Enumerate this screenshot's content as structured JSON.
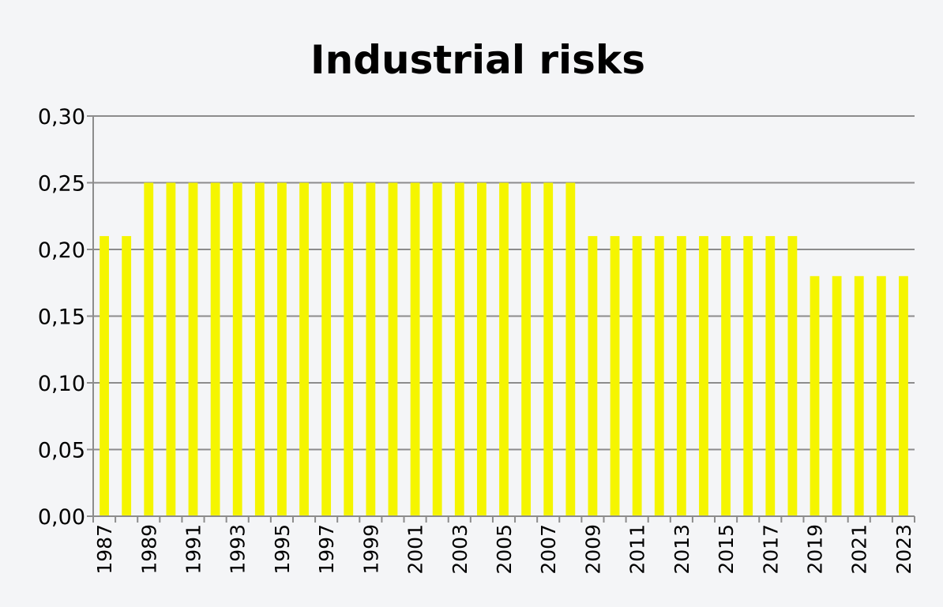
{
  "chart_data": {
    "type": "bar",
    "title": "Industrial risks",
    "xlabel": "",
    "ylabel": "",
    "ylim": [
      0,
      0.3
    ],
    "yticks": [
      "0,00",
      "0,05",
      "0,10",
      "0,15",
      "0,20",
      "0,25",
      "0,30"
    ],
    "grid": true,
    "bar_color": "#f5f500",
    "categories": [
      "1987",
      "1988",
      "1989",
      "1990",
      "1991",
      "1992",
      "1993",
      "1994",
      "1995",
      "1996",
      "1997",
      "1998",
      "1999",
      "2000",
      "2001",
      "2002",
      "2003",
      "2004",
      "2005",
      "2006",
      "2007",
      "2008",
      "2009",
      "2010",
      "2011",
      "2012",
      "2013",
      "2014",
      "2015",
      "2016",
      "2017",
      "2018",
      "2019",
      "2020",
      "2021",
      "2022",
      "2023"
    ],
    "xtick_labels_shown": [
      "1987",
      "1989",
      "1991",
      "1993",
      "1995",
      "1997",
      "1999",
      "2001",
      "2003",
      "2005",
      "2007",
      "2009",
      "2011",
      "2013",
      "2015",
      "2017",
      "2019",
      "2021",
      "2023"
    ],
    "values": [
      0.21,
      0.21,
      0.25,
      0.25,
      0.25,
      0.25,
      0.25,
      0.25,
      0.25,
      0.25,
      0.25,
      0.25,
      0.25,
      0.25,
      0.25,
      0.25,
      0.25,
      0.25,
      0.25,
      0.25,
      0.25,
      0.25,
      0.21,
      0.21,
      0.21,
      0.21,
      0.21,
      0.21,
      0.21,
      0.21,
      0.21,
      0.21,
      0.18,
      0.18,
      0.18,
      0.18,
      0.18
    ]
  }
}
